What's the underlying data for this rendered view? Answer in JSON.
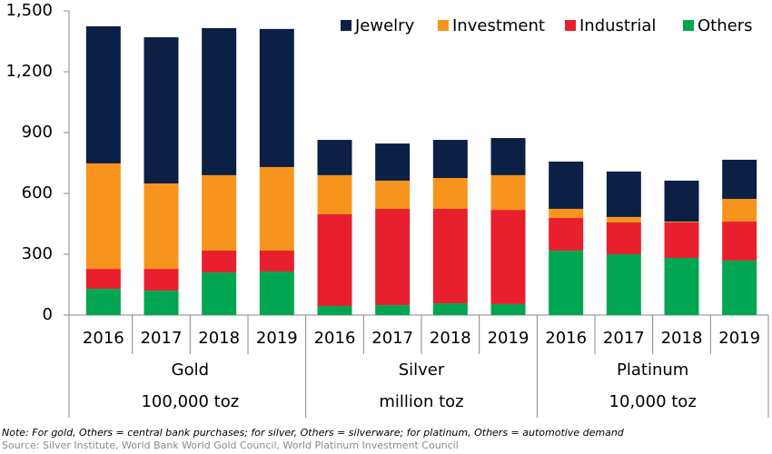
{
  "chart_data": {
    "type": "stacked-bar",
    "categories": [
      "2016",
      "2017",
      "2018",
      "2019",
      "2016",
      "2017",
      "2018",
      "2019",
      "2016",
      "2017",
      "2018",
      "2019"
    ],
    "groups": [
      {
        "name": "Gold",
        "unit": "100,000 toz"
      },
      {
        "name": "Silver",
        "unit": "million toz"
      },
      {
        "name": "Platinum",
        "unit": "10,000 toz"
      }
    ],
    "series": [
      {
        "name": "Jewelry",
        "color": "#0c1f45",
        "values": [
          676,
          721,
          725,
          681,
          174,
          183,
          188,
          183,
          233,
          224,
          202,
          193
        ]
      },
      {
        "name": "Investment",
        "color": "#f7941d",
        "values": [
          520,
          421,
          372,
          412,
          193,
          139,
          152,
          171,
          45,
          27,
          4,
          112
        ]
      },
      {
        "name": "Industrial",
        "color": "#e8202e",
        "values": [
          98,
          107,
          108,
          103,
          452,
          475,
          466,
          465,
          161,
          157,
          175,
          192
        ]
      },
      {
        "name": "Others",
        "color": "#00a651",
        "values": [
          130,
          121,
          210,
          215,
          45,
          49,
          58,
          54,
          318,
          300,
          282,
          269
        ]
      }
    ],
    "ylim": [
      0,
      1500
    ],
    "yticks": [
      0,
      300,
      600,
      900,
      {
        "value": 1200,
        "label": "1,200"
      },
      {
        "value": 1500,
        "label": "1,500"
      }
    ],
    "legend": "top-right",
    "note": "Note: For gold, Others = central bank purchases; for silver, Others = silverware; for platinum, Others = automotive demand",
    "source": "Source: Silver Institute, World Bank World Gold Council, World Platinum Investment Council"
  }
}
